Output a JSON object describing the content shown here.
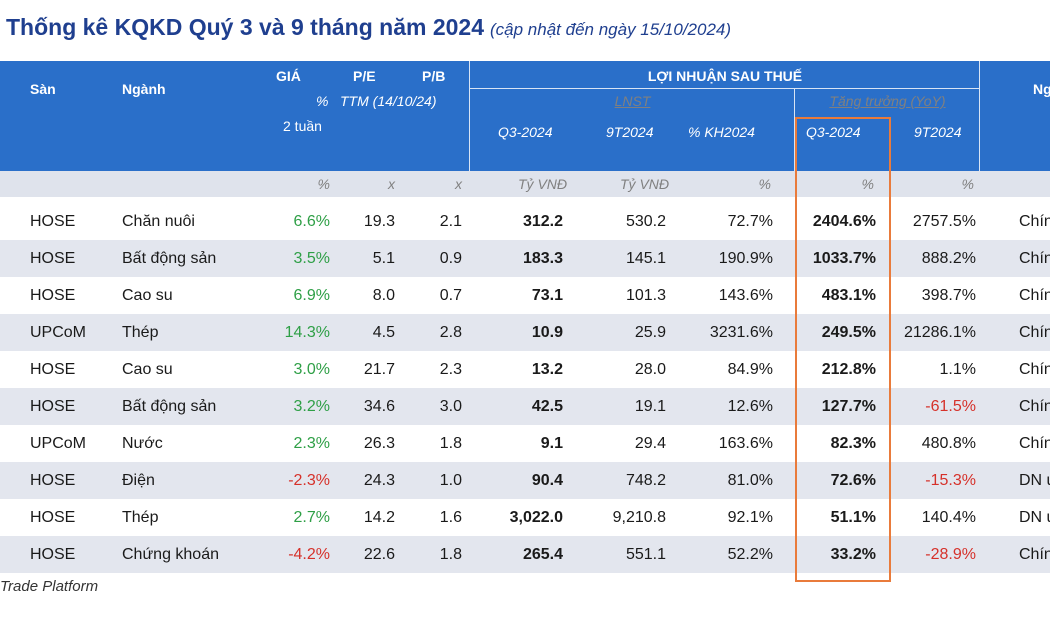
{
  "title": {
    "main": "Thống kê KQKD Quý 3 và 9 tháng năm 2024",
    "sub": "(cập nhật đến ngày 15/10/2024)"
  },
  "header": {
    "san": "Sàn",
    "nganh": "Ngành",
    "gia": "GIÁ",
    "gia_pct": "%",
    "gia_2tuan": "2 tuần",
    "pe": "P/E",
    "pb": "P/B",
    "ttm": "TTM (14/10/24)",
    "lnst_group": "LỢI NHUẬN SAU THUẾ",
    "lnst": "LNST",
    "q3": "Q3-2024",
    "t9": "9T2024",
    "kh": "% KH2024",
    "tang_truong": "Tăng trưởng (YoY)",
    "yoy_q3": "Q3-2024",
    "yoy_9t": "9T2024",
    "last_col_partial": "Ng"
  },
  "units": {
    "gia": "%",
    "pe": "x",
    "pb": "x",
    "q3": "Tỷ VNĐ",
    "t9": "Tỷ VNĐ",
    "kh": "%",
    "yoy_q3": "%",
    "yoy_9t": "%"
  },
  "rows": [
    {
      "san": "HOSE",
      "nganh": "Chăn nuôi",
      "gia": "6.6%",
      "gia_sign": "pos",
      "pe": "19.3",
      "pb": "2.1",
      "q3": "312.2",
      "t9": "530.2",
      "kh": "72.7%",
      "yoy_q3": "2404.6%",
      "yoy_9t": "2757.5%",
      "yoy_9t_sign": "",
      "note": "Chín"
    },
    {
      "san": "HOSE",
      "nganh": "Bất động sản",
      "gia": "3.5%",
      "gia_sign": "pos",
      "pe": "5.1",
      "pb": "0.9",
      "q3": "183.3",
      "t9": "145.1",
      "kh": "190.9%",
      "yoy_q3": "1033.7%",
      "yoy_9t": "888.2%",
      "yoy_9t_sign": "",
      "note": "Chín"
    },
    {
      "san": "HOSE",
      "nganh": "Cao su",
      "gia": "6.9%",
      "gia_sign": "pos",
      "pe": "8.0",
      "pb": "0.7",
      "q3": "73.1",
      "t9": "101.3",
      "kh": "143.6%",
      "yoy_q3": "483.1%",
      "yoy_9t": "398.7%",
      "yoy_9t_sign": "",
      "note": "Chín"
    },
    {
      "san": "UPCoM",
      "nganh": "Thép",
      "gia": "14.3%",
      "gia_sign": "pos",
      "pe": "4.5",
      "pb": "2.8",
      "q3": "10.9",
      "t9": "25.9",
      "kh": "3231.6%",
      "yoy_q3": "249.5%",
      "yoy_9t": "21286.1%",
      "yoy_9t_sign": "",
      "note": "Chín"
    },
    {
      "san": "HOSE",
      "nganh": "Cao su",
      "gia": "3.0%",
      "gia_sign": "pos",
      "pe": "21.7",
      "pb": "2.3",
      "q3": "13.2",
      "t9": "28.0",
      "kh": "84.9%",
      "yoy_q3": "212.8%",
      "yoy_9t": "1.1%",
      "yoy_9t_sign": "",
      "note": "Chín"
    },
    {
      "san": "HOSE",
      "nganh": "Bất động sản",
      "gia": "3.2%",
      "gia_sign": "pos",
      "pe": "34.6",
      "pb": "3.0",
      "q3": "42.5",
      "t9": "19.1",
      "kh": "12.6%",
      "yoy_q3": "127.7%",
      "yoy_9t": "-61.5%",
      "yoy_9t_sign": "neg",
      "note": "Chín"
    },
    {
      "san": "UPCoM",
      "nganh": "Nước",
      "gia": "2.3%",
      "gia_sign": "pos",
      "pe": "26.3",
      "pb": "1.8",
      "q3": "9.1",
      "t9": "29.4",
      "kh": "163.6%",
      "yoy_q3": "82.3%",
      "yoy_9t": "480.8%",
      "yoy_9t_sign": "",
      "note": "Chín"
    },
    {
      "san": "HOSE",
      "nganh": "Điện",
      "gia": "-2.3%",
      "gia_sign": "neg",
      "pe": "24.3",
      "pb": "1.0",
      "q3": "90.4",
      "t9": "748.2",
      "kh": "81.0%",
      "yoy_q3": "72.6%",
      "yoy_9t": "-15.3%",
      "yoy_9t_sign": "neg",
      "note": "DN u"
    },
    {
      "san": "HOSE",
      "nganh": "Thép",
      "gia": "2.7%",
      "gia_sign": "pos",
      "pe": "14.2",
      "pb": "1.6",
      "q3": "3,022.0",
      "t9": "9,210.8",
      "kh": "92.1%",
      "yoy_q3": "51.1%",
      "yoy_9t": "140.4%",
      "yoy_9t_sign": "",
      "note": "DN u"
    },
    {
      "san": "HOSE",
      "nganh": "Chứng khoán",
      "gia": "-4.2%",
      "gia_sign": "neg",
      "pe": "22.6",
      "pb": "1.8",
      "q3": "265.4",
      "t9": "551.1",
      "kh": "52.2%",
      "yoy_q3": "33.2%",
      "yoy_9t": "-28.9%",
      "yoy_9t_sign": "neg",
      "note": "Chín"
    }
  ],
  "footer": "Trade Platform",
  "colors": {
    "header_bg": "#2a6fc9",
    "title": "#1f3f8f",
    "positive": "#2e9f46",
    "negative": "#d6312a",
    "highlight_border": "#e97b3b",
    "alt_row": "#e3e6ee"
  }
}
